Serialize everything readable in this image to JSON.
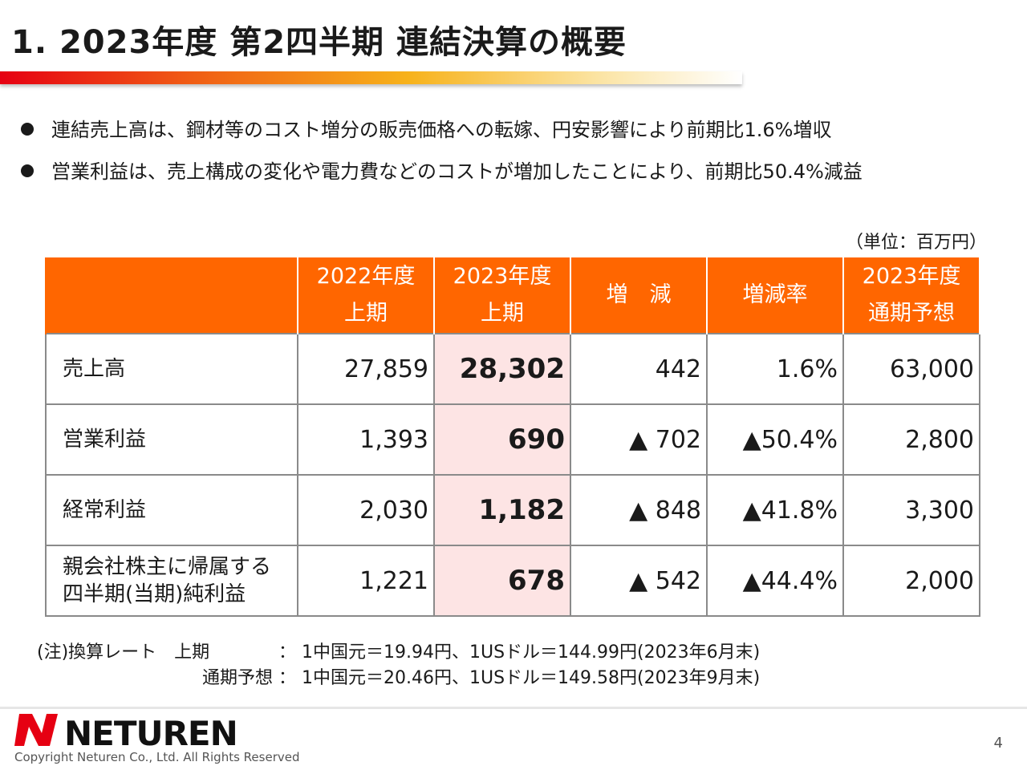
{
  "title": "1. 2023年度 第2四半期 連結決算の概要",
  "bullets": [
    "連結売上高は、鋼材等のコスト増分の販売価格への転嫁、円安影響により前期比1.6%増収",
    "営業利益は、売上構成の変化や電力費などのコストが増加したことにより、前期比50.4%減益"
  ],
  "unit": "（単位：百万円）",
  "table": {
    "headers": [
      {
        "l1": "",
        "l2": ""
      },
      {
        "l1": "2022年度",
        "l2": "上期"
      },
      {
        "l1": "2023年度",
        "l2": "上期"
      },
      {
        "l1": "増　減",
        "l2": ""
      },
      {
        "l1": "増減率",
        "l2": ""
      },
      {
        "l1": "2023年度",
        "l2": "通期予想"
      }
    ],
    "rows": [
      {
        "label": "売上高",
        "label2": "",
        "prev": "27,859",
        "curr": "28,302",
        "diff": "442",
        "rate": "1.6%",
        "forecast": "63,000"
      },
      {
        "label": "営業利益",
        "label2": "",
        "prev": "1,393",
        "curr": "690",
        "diff": "▲ 702",
        "rate": "▲50.4%",
        "forecast": "2,800"
      },
      {
        "label": "経常利益",
        "label2": "",
        "prev": "2,030",
        "curr": "1,182",
        "diff": "▲ 848",
        "rate": "▲41.8%",
        "forecast": "3,300"
      },
      {
        "label": "親会社株主に帰属する",
        "label2": "四半期(当期)純利益",
        "prev": "1,221",
        "curr": "678",
        "diff": "▲ 542",
        "rate": "▲44.4%",
        "forecast": "2,000"
      }
    ]
  },
  "note": {
    "line1_label": "(注)換算レート　上期",
    "line1_sep": "：",
    "line1_value": "1中国元＝19.94円、1USドル＝144.99円(2023年6月末)",
    "line2_label": "通期予想",
    "line2_sep": "：",
    "line2_value": "1中国元＝20.46円、1USドル＝149.58円(2023年9月末)"
  },
  "footer": {
    "logo_text": "NETUREN",
    "copyright": "Copyright  Neturen Co., Ltd. All Rights Reserved",
    "page_number": "4"
  },
  "colors": {
    "header_bg": "#ff6600",
    "highlight_bg": "#fde4e4",
    "logo_red": "#e60012"
  }
}
